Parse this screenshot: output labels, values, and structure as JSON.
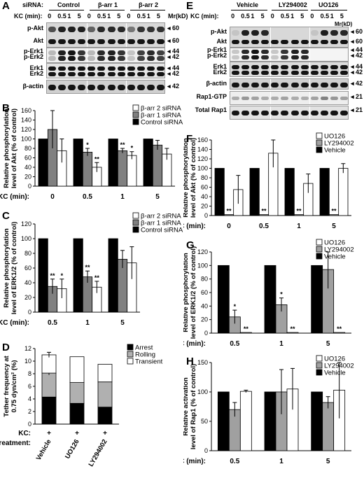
{
  "panels": {
    "A": "A",
    "B": "B",
    "C": "C",
    "D": "D",
    "E": "E",
    "F": "F",
    "G": "G",
    "H": "H"
  },
  "blot_A": {
    "sirna_label": "siRNA:",
    "groups": [
      "Control",
      "β-arr 1",
      "β-arr 2"
    ],
    "kc_label": "KC (min):",
    "lane_labels": [
      "0",
      "0.5",
      "1",
      "5"
    ],
    "mr_label": "Mr(kD)",
    "rows": [
      {
        "label": "p-Akt",
        "mw": "60"
      },
      {
        "label": "Akt",
        "mw": "60"
      },
      {
        "label": "p-Erk1",
        "mw": "44"
      },
      {
        "label": "p-Erk2",
        "mw": "42"
      },
      {
        "label": "Erk1",
        "mw": "44"
      },
      {
        "label": "Erk2",
        "mw": "42"
      },
      {
        "label": "β-actin",
        "mw": "42"
      }
    ]
  },
  "blot_E": {
    "kc_label": "KC (min):",
    "groups": [
      "Vehicle",
      "LY294002",
      "UO126"
    ],
    "lane_labels": [
      "0",
      "0.5",
      "1",
      "5"
    ],
    "mr_label": "Mr(kD)",
    "rows": [
      {
        "label": "p-Akt",
        "mw": "60"
      },
      {
        "label": "Akt",
        "mw": "60"
      },
      {
        "label": "p-Erk1",
        "mw": "44"
      },
      {
        "label": "p-Erk2",
        "mw": "42"
      },
      {
        "label": "Erk1",
        "mw": "44"
      },
      {
        "label": "Erk2",
        "mw": "42"
      },
      {
        "label": "β-actin",
        "mw": "42"
      },
      {
        "label": "Rap1-GTP",
        "mw": "21"
      },
      {
        "label": "Total Rap1",
        "mw": "21"
      }
    ]
  },
  "chart_data": [
    {
      "panel": "B",
      "type": "bar",
      "ylabel": "Relative phosphorylation level of Akt (% of control)",
      "xlabel": "KC (min):",
      "categories": [
        "0",
        "0.5",
        "1",
        "5"
      ],
      "ylim": [
        0,
        160
      ],
      "yticks": [
        0,
        20,
        40,
        60,
        80,
        100,
        120,
        140,
        160
      ],
      "legend_position": "top-right",
      "series": [
        {
          "name": "Control siRNA",
          "color": "#000000",
          "values": [
            100,
            100,
            100,
            100
          ],
          "errors": [
            0,
            0,
            0,
            0
          ],
          "sig": [
            "",
            "",
            "",
            ""
          ]
        },
        {
          "name": "β-arr 1 siRNA",
          "color": "#808080",
          "values": [
            120,
            72,
            75,
            87
          ],
          "errors": [
            40,
            8,
            5,
            10
          ],
          "sig": [
            "",
            "*",
            "**",
            ""
          ]
        },
        {
          "name": "β-arr 2 siRNA",
          "color": "#ffffff",
          "values": [
            75,
            40,
            65,
            68
          ],
          "errors": [
            25,
            10,
            8,
            12
          ],
          "sig": [
            "",
            "**",
            "*",
            ""
          ]
        }
      ]
    },
    {
      "panel": "C",
      "type": "bar",
      "ylabel": "Relative phosphorylation level of ERK1/2 (% of control)",
      "xlabel": "KC (min):",
      "categories": [
        "0.5",
        "1",
        "5"
      ],
      "ylim": [
        0,
        120
      ],
      "yticks": [
        0,
        20,
        40,
        60,
        80,
        100,
        120
      ],
      "legend_position": "top-right",
      "series": [
        {
          "name": "Control siRNA",
          "color": "#000000",
          "values": [
            100,
            100,
            100
          ],
          "errors": [
            0,
            0,
            0
          ],
          "sig": [
            "",
            "",
            ""
          ]
        },
        {
          "name": "β-arr 1 siRNA",
          "color": "#808080",
          "values": [
            35,
            48,
            72
          ],
          "errors": [
            10,
            8,
            12
          ],
          "sig": [
            "**",
            "**",
            ""
          ]
        },
        {
          "name": "β-arr 2 siRNA",
          "color": "#ffffff",
          "values": [
            32,
            34,
            67
          ],
          "errors": [
            13,
            8,
            22
          ],
          "sig": [
            "*",
            "**",
            ""
          ]
        }
      ]
    },
    {
      "panel": "D",
      "type": "bar",
      "stacked": true,
      "ylabel": "Tether frequency at 0.75 dyn/cm² (%)",
      "ylim": [
        0,
        12
      ],
      "yticks": [
        0,
        2,
        4,
        6,
        8,
        10,
        12
      ],
      "categories": [
        "Vehicle",
        "UO126",
        "LY294002"
      ],
      "kc_label": "KC:",
      "kc_values": [
        "+",
        "+",
        "+"
      ],
      "pretreatment_label": "Pretreatment:",
      "legend_position": "top-right",
      "series": [
        {
          "name": "Arrest",
          "color": "#000000",
          "values": [
            4.3,
            3.3,
            2.7
          ],
          "errors": [
            1.3,
            0.2,
            0.1
          ]
        },
        {
          "name": "Rolling",
          "color": "#b0b0b0",
          "values": [
            3.8,
            3.3,
            4.0
          ],
          "errors": [
            0.3,
            0,
            0
          ]
        },
        {
          "name": "Transient",
          "color": "#ffffff",
          "values": [
            2.9,
            4.1,
            2.8
          ],
          "errors": [
            0.4,
            0,
            0
          ]
        }
      ]
    },
    {
      "panel": "F",
      "type": "bar",
      "ylabel": "Relative phosphorylation level of Akt (% of control)",
      "xlabel": "KC (min):",
      "categories": [
        "0",
        "0.5",
        "1",
        "5"
      ],
      "ylim": [
        0,
        160
      ],
      "yticks": [
        0,
        20,
        40,
        60,
        80,
        100,
        120,
        140,
        160
      ],
      "legend_position": "top-right",
      "series": [
        {
          "name": "Vehicle",
          "color": "#000000",
          "values": [
            100,
            100,
            100,
            100
          ],
          "errors": [
            0,
            0,
            0,
            0
          ],
          "sig": [
            "",
            "",
            "",
            ""
          ]
        },
        {
          "name": "LY294002",
          "color": "#a0a0a0",
          "values": [
            2,
            2,
            2,
            2
          ],
          "errors": [
            0,
            0,
            0,
            0
          ],
          "sig": [
            "**",
            "**",
            "**",
            "**"
          ]
        },
        {
          "name": "UO126",
          "color": "#ffffff",
          "values": [
            55,
            132,
            68,
            100
          ],
          "errors": [
            30,
            30,
            20,
            10
          ],
          "sig": [
            "",
            "",
            "",
            ""
          ]
        }
      ]
    },
    {
      "panel": "G",
      "type": "bar",
      "ylabel": "Relative phosphorylation level of ERK1/2 (% of control)",
      "xlabel": "KC (min):",
      "categories": [
        "0.5",
        "1",
        "5"
      ],
      "ylim": [
        0,
        120
      ],
      "yticks": [
        0,
        20,
        40,
        60,
        80,
        100,
        120
      ],
      "legend_position": "top-right",
      "series": [
        {
          "name": "Vehicle",
          "color": "#000000",
          "values": [
            100,
            100,
            100
          ],
          "errors": [
            0,
            0,
            0
          ],
          "sig": [
            "",
            "",
            ""
          ]
        },
        {
          "name": "LY294002",
          "color": "#a0a0a0",
          "values": [
            24,
            42,
            94
          ],
          "errors": [
            10,
            10,
            28
          ],
          "sig": [
            "*",
            "*",
            ""
          ]
        },
        {
          "name": "UO126",
          "color": "#ffffff",
          "values": [
            1,
            1,
            1
          ],
          "errors": [
            0,
            0,
            0
          ],
          "sig": [
            "**",
            "**",
            "**"
          ]
        }
      ]
    },
    {
      "panel": "H",
      "type": "bar",
      "ylabel": "Relative activation level of Rap1 (% of control)",
      "xlabel": "KC (min):",
      "categories": [
        "0.5",
        "1",
        "5"
      ],
      "ylim": [
        0,
        150
      ],
      "yticks": [
        0,
        50,
        100,
        150
      ],
      "legend_position": "top-right",
      "series": [
        {
          "name": "Vehicle",
          "color": "#000000",
          "values": [
            100,
            100,
            100
          ],
          "errors": [
            0,
            0,
            0
          ],
          "sig": [
            "",
            "",
            ""
          ]
        },
        {
          "name": "LY294002",
          "color": "#a0a0a0",
          "values": [
            70,
            100,
            82
          ],
          "errors": [
            12,
            38,
            10
          ],
          "sig": [
            "",
            "",
            ""
          ]
        },
        {
          "name": "UO126",
          "color": "#ffffff",
          "values": [
            101,
            105,
            103
          ],
          "errors": [
            2,
            35,
            48
          ],
          "sig": [
            "",
            "",
            ""
          ]
        }
      ]
    }
  ]
}
